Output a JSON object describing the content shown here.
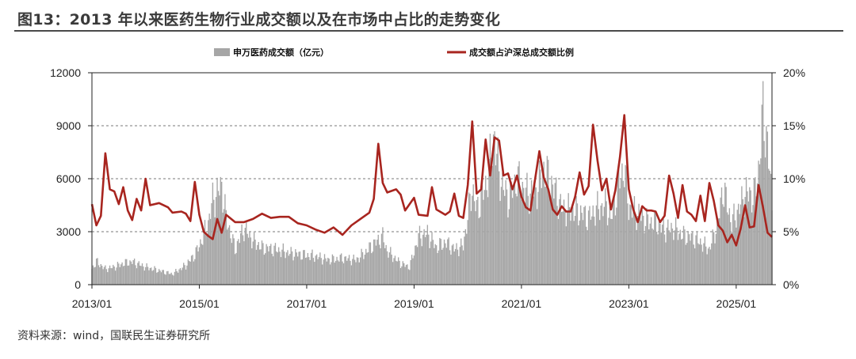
{
  "figure": {
    "title": "图13：2013 年以来医药生物行业成交额以及在市场中占比的走势变化",
    "source": "资料来源：wind，国联民生证券研究所"
  },
  "chart_data": {
    "type": "bar+line",
    "title": "",
    "legend_position": "top",
    "grid": "horizontal dashed",
    "x_axis": {
      "type": "date",
      "ticks": [
        "2013/01",
        "2015/01",
        "2017/01",
        "2019/01",
        "2021/01",
        "2023/01",
        "2025/01"
      ],
      "range": [
        "2013-01",
        "2025-09"
      ]
    },
    "y_left": {
      "ylim": [
        0,
        12000
      ],
      "ticks": [
        0,
        3000,
        6000,
        9000,
        12000
      ],
      "tick_labels": [
        "0",
        "3000",
        "6000",
        "9000",
        "12000"
      ]
    },
    "y_right": {
      "ylim": [
        0,
        20
      ],
      "ticks": [
        0,
        5,
        10,
        15,
        20
      ],
      "tick_labels": [
        "0%",
        "5%",
        "10%",
        "15%",
        "20%"
      ]
    },
    "series": [
      {
        "name": "申万医药成交额（亿元）",
        "type": "bar",
        "axis": "left",
        "color": "#a6a6a6",
        "points": [
          [
            "2013-01",
            900
          ],
          [
            "2013-02",
            1300
          ],
          [
            "2013-04",
            900
          ],
          [
            "2013-06",
            1000
          ],
          [
            "2013-08",
            1200
          ],
          [
            "2013-10",
            1300
          ],
          [
            "2014-01",
            1000
          ],
          [
            "2014-04",
            800
          ],
          [
            "2014-07",
            600
          ],
          [
            "2014-10",
            1100
          ],
          [
            "2014-12",
            1700
          ],
          [
            "2015-01",
            2200
          ],
          [
            "2015-03",
            3500
          ],
          [
            "2015-04",
            4800
          ],
          [
            "2015-06",
            5600
          ],
          [
            "2015-07",
            3800
          ],
          [
            "2015-09",
            2000
          ],
          [
            "2015-11",
            3200
          ],
          [
            "2016-01",
            2500
          ],
          [
            "2016-03",
            2100
          ],
          [
            "2016-06",
            2000
          ],
          [
            "2016-09",
            1800
          ],
          [
            "2016-12",
            1700
          ],
          [
            "2017-03",
            1600
          ],
          [
            "2017-06",
            1400
          ],
          [
            "2017-09",
            1500
          ],
          [
            "2017-12",
            1400
          ],
          [
            "2018-02",
            1800
          ],
          [
            "2018-04",
            2300
          ],
          [
            "2018-06",
            2700
          ],
          [
            "2018-07",
            1900
          ],
          [
            "2018-10",
            1200
          ],
          [
            "2018-12",
            1000
          ],
          [
            "2019-02",
            2700
          ],
          [
            "2019-04",
            2900
          ],
          [
            "2019-06",
            2100
          ],
          [
            "2019-08",
            2400
          ],
          [
            "2019-10",
            2000
          ],
          [
            "2019-12",
            2200
          ],
          [
            "2020-02",
            5500
          ],
          [
            "2020-03",
            4200
          ],
          [
            "2020-05",
            5500
          ],
          [
            "2020-07",
            8500
          ],
          [
            "2020-08",
            6200
          ],
          [
            "2020-10",
            4800
          ],
          [
            "2020-12",
            6000
          ],
          [
            "2021-02",
            5200
          ],
          [
            "2021-04",
            5200
          ],
          [
            "2021-06",
            6500
          ],
          [
            "2021-08",
            5600
          ],
          [
            "2021-10",
            4300
          ],
          [
            "2021-12",
            4200
          ],
          [
            "2022-02",
            4100
          ],
          [
            "2022-04",
            3800
          ],
          [
            "2022-06",
            4300
          ],
          [
            "2022-08",
            4500
          ],
          [
            "2022-09",
            3700
          ],
          [
            "2022-11",
            6000
          ],
          [
            "2022-12",
            6600
          ],
          [
            "2023-01",
            4400
          ],
          [
            "2023-03",
            4000
          ],
          [
            "2023-05",
            3600
          ],
          [
            "2023-07",
            3500
          ],
          [
            "2023-09",
            3100
          ],
          [
            "2023-11",
            3200
          ],
          [
            "2024-01",
            2800
          ],
          [
            "2024-03",
            2700
          ],
          [
            "2024-05",
            2400
          ],
          [
            "2024-07",
            2000
          ],
          [
            "2024-09",
            3600
          ],
          [
            "2024-10",
            5500
          ],
          [
            "2024-12",
            3500
          ],
          [
            "2025-02",
            4500
          ],
          [
            "2025-03",
            5200
          ],
          [
            "2025-05",
            5000
          ],
          [
            "2025-06",
            6500
          ],
          [
            "2025-07",
            9700
          ],
          [
            "2025-08",
            8000
          ],
          [
            "2025-09",
            4500
          ]
        ]
      },
      {
        "name": "成交额占沪深总成交额比例",
        "type": "line",
        "axis": "right",
        "color": "#a8251f",
        "points": [
          [
            "2013-01",
            7.6
          ],
          [
            "2013-02",
            5.6
          ],
          [
            "2013-03",
            6.5
          ],
          [
            "2013-04",
            12.4
          ],
          [
            "2013-05",
            9.0
          ],
          [
            "2013-06",
            8.8
          ],
          [
            "2013-07",
            7.6
          ],
          [
            "2013-08",
            9.2
          ],
          [
            "2013-09",
            7.0
          ],
          [
            "2013-10",
            6.1
          ],
          [
            "2013-11",
            8.1
          ],
          [
            "2013-12",
            7.0
          ],
          [
            "2014-01",
            10.0
          ],
          [
            "2014-02",
            7.5
          ],
          [
            "2014-04",
            7.7
          ],
          [
            "2014-06",
            7.3
          ],
          [
            "2014-07",
            6.8
          ],
          [
            "2014-09",
            6.9
          ],
          [
            "2014-10",
            6.7
          ],
          [
            "2014-11",
            6.0
          ],
          [
            "2014-12",
            9.7
          ],
          [
            "2015-01",
            6.6
          ],
          [
            "2015-02",
            5.0
          ],
          [
            "2015-03",
            4.6
          ],
          [
            "2015-04",
            4.3
          ],
          [
            "2015-05",
            6.2
          ],
          [
            "2015-06",
            4.9
          ],
          [
            "2015-07",
            6.6
          ],
          [
            "2015-09",
            5.9
          ],
          [
            "2015-11",
            5.9
          ],
          [
            "2016-01",
            6.2
          ],
          [
            "2016-03",
            6.7
          ],
          [
            "2016-05",
            6.3
          ],
          [
            "2016-07",
            6.4
          ],
          [
            "2016-09",
            6.4
          ],
          [
            "2016-11",
            5.8
          ],
          [
            "2017-01",
            5.6
          ],
          [
            "2017-03",
            5.2
          ],
          [
            "2017-05",
            4.9
          ],
          [
            "2017-07",
            5.4
          ],
          [
            "2017-09",
            4.7
          ],
          [
            "2017-11",
            5.6
          ],
          [
            "2018-01",
            6.2
          ],
          [
            "2018-03",
            6.8
          ],
          [
            "2018-04",
            8.1
          ],
          [
            "2018-05",
            13.3
          ],
          [
            "2018-06",
            9.6
          ],
          [
            "2018-07",
            8.7
          ],
          [
            "2018-09",
            9.0
          ],
          [
            "2018-10",
            8.5
          ],
          [
            "2018-11",
            7.0
          ],
          [
            "2019-01",
            8.2
          ],
          [
            "2019-02",
            6.6
          ],
          [
            "2019-04",
            6.5
          ],
          [
            "2019-05",
            9.2
          ],
          [
            "2019-06",
            7.1
          ],
          [
            "2019-08",
            6.6
          ],
          [
            "2019-09",
            6.9
          ],
          [
            "2019-10",
            8.6
          ],
          [
            "2019-11",
            6.5
          ],
          [
            "2019-12",
            6.3
          ],
          [
            "2020-01",
            9.4
          ],
          [
            "2020-02",
            15.4
          ],
          [
            "2020-03",
            8.6
          ],
          [
            "2020-04",
            9.0
          ],
          [
            "2020-05",
            13.7
          ],
          [
            "2020-06",
            10.3
          ],
          [
            "2020-07",
            13.9
          ],
          [
            "2020-08",
            13.6
          ],
          [
            "2020-09",
            10.3
          ],
          [
            "2020-10",
            10.5
          ],
          [
            "2020-11",
            9.0
          ],
          [
            "2020-12",
            10.3
          ],
          [
            "2021-01",
            8.3
          ],
          [
            "2021-02",
            7.3
          ],
          [
            "2021-03",
            7.0
          ],
          [
            "2021-04",
            9.8
          ],
          [
            "2021-05",
            12.6
          ],
          [
            "2021-06",
            10.1
          ],
          [
            "2021-07",
            9.0
          ],
          [
            "2021-08",
            7.1
          ],
          [
            "2021-09",
            6.6
          ],
          [
            "2021-10",
            7.4
          ],
          [
            "2021-11",
            6.9
          ],
          [
            "2021-12",
            6.9
          ],
          [
            "2022-01",
            8.3
          ],
          [
            "2022-02",
            10.6
          ],
          [
            "2022-03",
            8.5
          ],
          [
            "2022-04",
            9.3
          ],
          [
            "2022-05",
            15.1
          ],
          [
            "2022-06",
            11.7
          ],
          [
            "2022-07",
            8.9
          ],
          [
            "2022-08",
            10.0
          ],
          [
            "2022-09",
            7.1
          ],
          [
            "2022-10",
            8.9
          ],
          [
            "2022-11",
            12.0
          ],
          [
            "2022-12",
            16.0
          ],
          [
            "2023-01",
            9.0
          ],
          [
            "2023-02",
            7.1
          ],
          [
            "2023-03",
            5.9
          ],
          [
            "2023-04",
            7.4
          ],
          [
            "2023-05",
            7.0
          ],
          [
            "2023-06",
            7.0
          ],
          [
            "2023-07",
            6.9
          ],
          [
            "2023-08",
            5.9
          ],
          [
            "2023-09",
            6.5
          ],
          [
            "2023-10",
            10.3
          ],
          [
            "2023-11",
            8.6
          ],
          [
            "2023-12",
            6.3
          ],
          [
            "2024-01",
            9.4
          ],
          [
            "2024-02",
            6.9
          ],
          [
            "2024-03",
            6.6
          ],
          [
            "2024-04",
            6.0
          ],
          [
            "2024-05",
            8.4
          ],
          [
            "2024-06",
            6.0
          ],
          [
            "2024-07",
            9.6
          ],
          [
            "2024-08",
            7.9
          ],
          [
            "2024-09",
            5.6
          ],
          [
            "2024-10",
            5.1
          ],
          [
            "2024-11",
            4.0
          ],
          [
            "2024-12",
            4.7
          ],
          [
            "2025-01",
            3.7
          ],
          [
            "2025-02",
            5.3
          ],
          [
            "2025-03",
            7.5
          ],
          [
            "2025-04",
            5.4
          ],
          [
            "2025-05",
            5.5
          ],
          [
            "2025-06",
            9.4
          ],
          [
            "2025-07",
            7.3
          ],
          [
            "2025-08",
            4.9
          ],
          [
            "2025-09",
            4.5
          ]
        ]
      }
    ]
  }
}
